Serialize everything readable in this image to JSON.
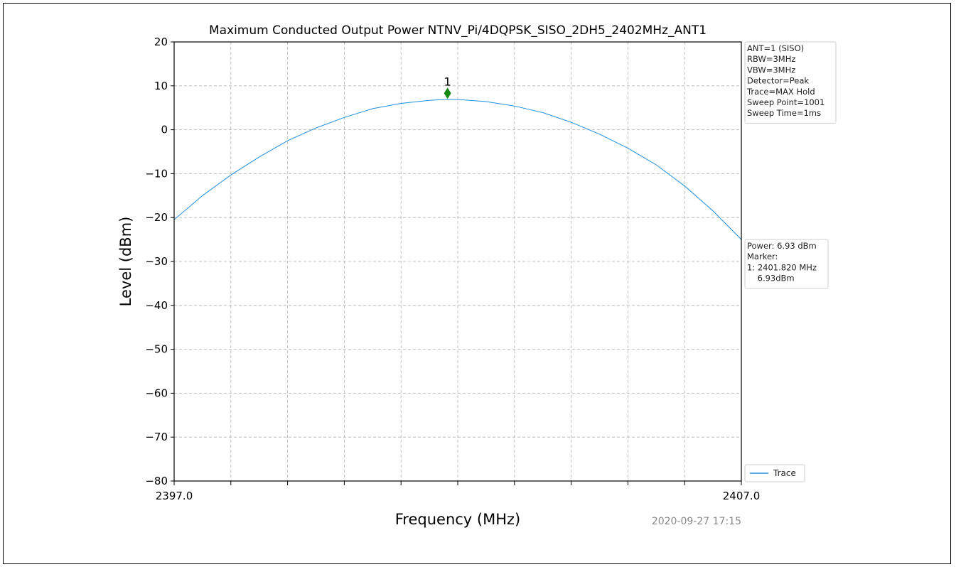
{
  "chart_data": {
    "type": "line",
    "title": "Maximum Conducted Output Power NTNV_Pi/4DQPSK_SISO_2DH5_2402MHz_ANT1",
    "xlabel": "Frequency (MHz)",
    "ylabel": "Level (dBm)",
    "xlim": [
      2397.0,
      2407.0
    ],
    "ylim": [
      -80,
      20
    ],
    "x_tick_labels": [
      "2397.0",
      "2407.0"
    ],
    "x_minor_ticks": [
      2398,
      2399,
      2400,
      2401,
      2402,
      2403,
      2404,
      2405,
      2406
    ],
    "y_ticks": [
      20,
      10,
      0,
      -10,
      -20,
      -30,
      -40,
      -50,
      -60,
      -70,
      -80
    ],
    "y_tick_labels": [
      "20",
      "10",
      "0",
      "−10",
      "−20",
      "−30",
      "−40",
      "−50",
      "−60",
      "−70",
      "−80"
    ],
    "grid": true,
    "trace_color": "#1f8fe0",
    "series": [
      {
        "name": "Trace",
        "x": [
          2397.0,
          2397.5,
          2398.0,
          2398.5,
          2399.0,
          2399.5,
          2400.0,
          2400.5,
          2401.0,
          2401.5,
          2401.82,
          2402.0,
          2402.5,
          2403.0,
          2403.5,
          2404.0,
          2404.5,
          2405.0,
          2405.5,
          2406.0,
          2406.5,
          2407.0
        ],
        "y": [
          -20.5,
          -15.0,
          -10.3,
          -6.2,
          -2.5,
          0.4,
          2.8,
          4.8,
          6.0,
          6.7,
          6.93,
          6.9,
          6.4,
          5.4,
          3.9,
          1.7,
          -1.0,
          -4.2,
          -8.0,
          -12.8,
          -18.5,
          -25.0
        ]
      }
    ],
    "marker": {
      "label": "1",
      "x": 2401.82,
      "y": 8.3,
      "color": "#118811"
    },
    "legend": {
      "position": "bottom-right",
      "entries": [
        "Trace"
      ]
    },
    "settings_box": [
      "ANT=1 (SISO)",
      "RBW=3MHz",
      "VBW=3MHz",
      "Detector=Peak",
      "Trace=MAX Hold",
      "Sweep Point=1001",
      "Sweep Time=1ms"
    ],
    "result_box": [
      "Power: 6.93 dBm",
      "Marker:",
      "1: 2401.820 MHz",
      "    6.93dBm"
    ],
    "timestamp": "2020-09-27 17:15"
  }
}
